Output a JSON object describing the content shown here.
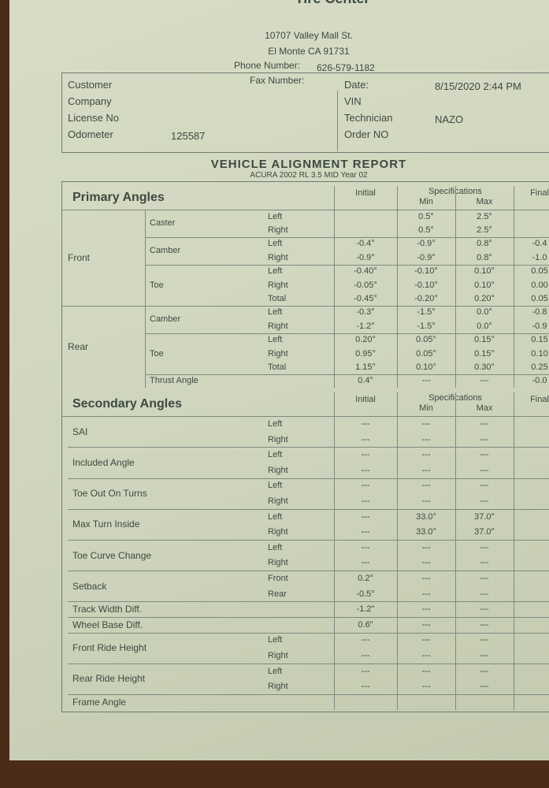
{
  "header": {
    "shop": "Tire Center",
    "address": "10707 Valley Mall St.",
    "city": "El Monte CA 91731",
    "phone_label": "Phone Number:",
    "phone": "626-579-1182",
    "fax_label": "Fax Number:"
  },
  "info": {
    "left": [
      {
        "label": "Customer"
      },
      {
        "label": "Company"
      },
      {
        "label": "License No"
      },
      {
        "label": "Odometer",
        "value": "125587"
      }
    ],
    "right": [
      {
        "label": "Date:",
        "value": "8/15/2020  2:44 PM"
      },
      {
        "label": "VIN"
      },
      {
        "label": "Technician",
        "value": "NAZO"
      },
      {
        "label": "Order NO"
      }
    ]
  },
  "report": {
    "title": "VEHICLE ALIGNMENT REPORT",
    "subtitle": "ACURA 2002 RL 3.5 MID Year 02"
  },
  "primary": {
    "title": "Primary Angles",
    "columns": {
      "initial": "Initial",
      "spec": "Specifications",
      "min": "Min",
      "max": "Max",
      "final": "Final"
    },
    "rows": [
      {
        "group": "Front",
        "item": "Caster",
        "side": "Left",
        "min": "0.5°",
        "max": "2.5°"
      },
      {
        "side": "Right",
        "min": "0.5°",
        "max": "2.5°"
      },
      {
        "item": "Camber",
        "side": "Left",
        "initial": "-0.4°",
        "min": "-0.9°",
        "max": "0.8°",
        "final": "-0.4"
      },
      {
        "side": "Right",
        "initial": "-0.9°",
        "min": "-0.9°",
        "max": "0.8°",
        "final": "-1.0"
      },
      {
        "item": "Toe",
        "side": "Left",
        "initial": "-0.40°",
        "min": "-0.10°",
        "max": "0.10°",
        "final": "0.05"
      },
      {
        "side": "Right",
        "initial": "-0.05°",
        "min": "-0.10°",
        "max": "0.10°",
        "final": "0.00"
      },
      {
        "side": "Total",
        "initial": "-0.45°",
        "min": "-0.20°",
        "max": "0.20°",
        "final": "0.05"
      },
      {
        "group": "Rear",
        "item": "Camber",
        "side": "Left",
        "initial": "-0.3°",
        "min": "-1.5°",
        "max": "0.0°",
        "final": "-0.8"
      },
      {
        "side": "Right",
        "initial": "-1.2°",
        "min": "-1.5°",
        "max": "0.0°",
        "final": "-0.9"
      },
      {
        "item": "Toe",
        "side": "Left",
        "initial": "0.20°",
        "min": "0.05°",
        "max": "0.15°",
        "final": "0.15"
      },
      {
        "side": "Right",
        "initial": "0.95°",
        "min": "0.05°",
        "max": "0.15°",
        "final": "0.10"
      },
      {
        "side": "Total",
        "initial": "1.15°",
        "min": "0.10°",
        "max": "0.30°",
        "final": "0.25"
      },
      {
        "item": "Thrust Angle",
        "initial": "0.4°",
        "min": "---",
        "max": "---",
        "final": "-0.0"
      }
    ]
  },
  "secondary": {
    "title": "Secondary Angles",
    "columns": {
      "initial": "Initial",
      "spec": "Specifications",
      "min": "Min",
      "max": "Max",
      "final": "Final"
    },
    "rows": [
      {
        "item": "SAI",
        "side": "Left",
        "initial": "---",
        "min": "---",
        "max": "---"
      },
      {
        "side": "Right",
        "initial": "---",
        "min": "---",
        "max": "---"
      },
      {
        "item": "Included Angle",
        "side": "Left",
        "initial": "---",
        "min": "---",
        "max": "---"
      },
      {
        "side": "Right",
        "initial": "---",
        "min": "---",
        "max": "---"
      },
      {
        "item": "Toe Out On Turns",
        "side": "Left",
        "initial": "---",
        "min": "---",
        "max": "---"
      },
      {
        "side": "Right",
        "initial": "---",
        "min": "---",
        "max": "---"
      },
      {
        "item": "Max Turn Inside",
        "side": "Left",
        "initial": "---",
        "min": "33.0°",
        "max": "37.0°"
      },
      {
        "side": "Right",
        "initial": "---",
        "min": "33.0°",
        "max": "37.0°"
      },
      {
        "item": "Toe Curve Change",
        "side": "Left",
        "initial": "---",
        "min": "---",
        "max": "---"
      },
      {
        "side": "Right",
        "initial": "---",
        "min": "---",
        "max": "---"
      },
      {
        "item": "Setback",
        "side": "Front",
        "initial": "0.2°",
        "min": "---",
        "max": "---"
      },
      {
        "side": "Rear",
        "initial": "-0.5°",
        "min": "---",
        "max": "---"
      },
      {
        "item": "Track Width Diff.",
        "initial": "-1.2\"",
        "min": "---",
        "max": "---"
      },
      {
        "item": "Wheel Base Diff.",
        "initial": "0.6\"",
        "min": "---",
        "max": "---"
      },
      {
        "item": "Front Ride Height",
        "side": "Left",
        "initial": "---",
        "min": "---",
        "max": "---"
      },
      {
        "side": "Right",
        "initial": "---",
        "min": "---",
        "max": "---"
      },
      {
        "item": "Rear Ride Height",
        "side": "Left",
        "initial": "---",
        "min": "---",
        "max": "---"
      },
      {
        "side": "Right",
        "initial": "---",
        "min": "---",
        "max": "---"
      },
      {
        "item": "Frame Angle"
      }
    ]
  }
}
